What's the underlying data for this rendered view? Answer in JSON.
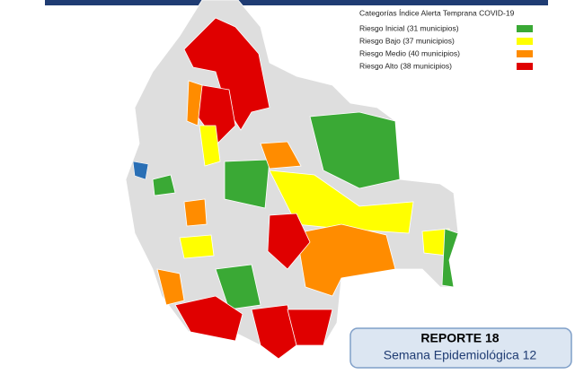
{
  "legend": {
    "title": "Categorías Índice Alerta Temprana COVID-19",
    "items": [
      {
        "label": "Riesgo Inicial (31 municipios)",
        "color": "#3aa935"
      },
      {
        "label": "Riesgo Bajo (37 municipios)",
        "color": "#ffff00"
      },
      {
        "label": "Riesgo Medio (40 municipios)",
        "color": "#ff8c00"
      },
      {
        "label": "Riesgo Alto (38 municipios)",
        "color": "#e00000"
      }
    ]
  },
  "report": {
    "title": "REPORTE 18",
    "subtitle": "Semana Epidemiológica 12"
  }
}
